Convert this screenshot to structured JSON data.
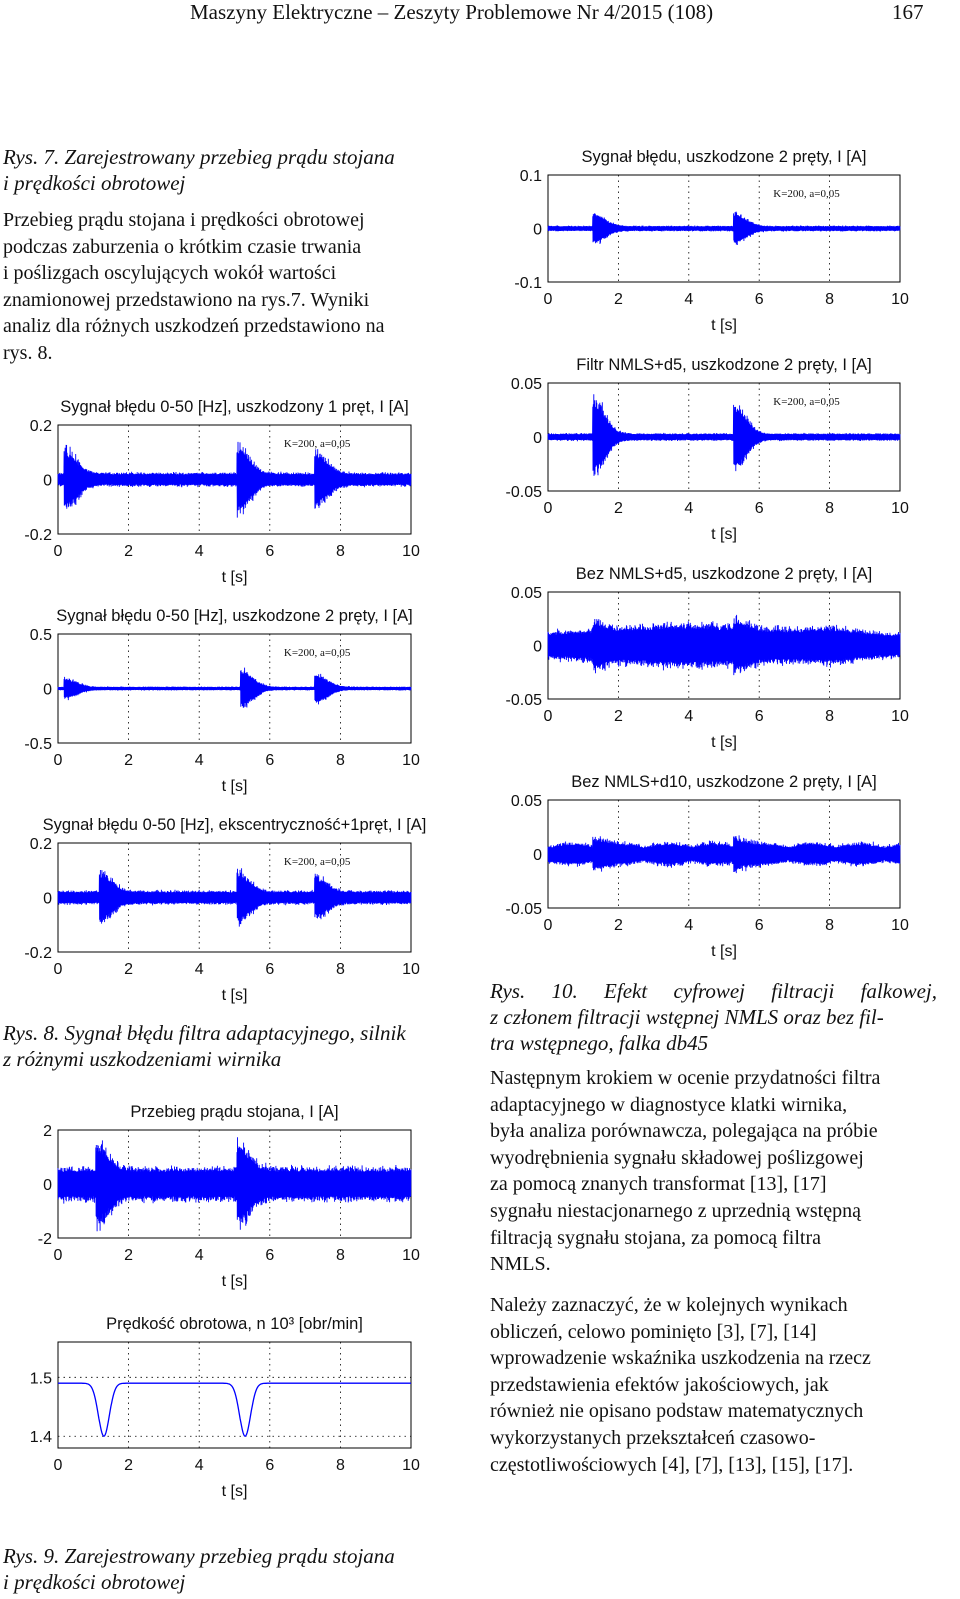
{
  "header": {
    "journal": "Maszyny Elektryczne – Zeszyty Problemowe Nr 4/2015 (108)",
    "page": "167"
  },
  "captions": {
    "rys7_line1": "Rys. 7. Zarejestrowany przebieg prądu stojana",
    "rys7_line2": "i prędkości obrotowej",
    "rys8_line1": "Rys. 8. Sygnał błędu filtra adaptacyjnego, silnik",
    "rys8_line2": "z różnymi uszkodzeniami wirnika",
    "rys9_line1": "Rys. 9. Zarejestrowany przebieg prądu stojana",
    "rys9_line2": "i prędkości obrotowej",
    "rys10_line1": "Rys.  10.  Efekt  cyfrowej  filtracji  falkowej,",
    "rys10_line2": "z członem filtracji wstępnej NMLS oraz bez fil-",
    "rys10_line3": "tra wstępnego, falka db45"
  },
  "text": {
    "left_para": [
      "Przebieg prądu stojana i prędkości obrotowej",
      "podczas zaburzenia o krótkim czasie trwania",
      "i poślizgach oscylujących wokół wartości",
      "znamionowej przedstawiono na rys.7. Wyniki",
      "analiz dla różnych uszkodzeń przedstawiono na",
      "rys. 8."
    ],
    "right_para1": [
      "Następnym krokiem w ocenie przydatności filtra",
      "adaptacyjnego w diagnostyce klatki wirnika,",
      "była analiza porównawcza, polegająca na próbie",
      "wyodrębnienia sygnału składowej poślizgowej",
      "za pomocą znanych transformat [13], [17]",
      "sygnału niestacjonarnego z uprzednią wstępną",
      "filtracją sygnału stojana, za pomocą filtra",
      "NMLS."
    ],
    "right_para2": [
      "Należy zaznaczyć, że w kolejnych wynikach",
      "obliczeń, celowo pominięto [3], [7], [14]",
      "wprowadzenie wskaźnika uszkodzenia na rzecz",
      "przedstawienia efektów jakościowych, jak",
      "również nie opisano podstaw matematycznych",
      "wykorzystanych przekształceń czasowo-",
      "częstotliwościowych [4], [7], [13], [15], [17]."
    ]
  },
  "chart_data": [
    {
      "type": "line",
      "title": "Sygnał błędu 0-50 [Hz], uszkodzony 1 pręt, I [A]",
      "xlabel": "t [s]",
      "ylabel": "",
      "xlim": [
        0,
        10
      ],
      "ylim": [
        -0.2,
        0.2
      ],
      "xticks": [
        "0",
        "2",
        "4",
        "6",
        "8",
        "10"
      ],
      "yticks": [
        "0.2",
        "0",
        "-0.2"
      ],
      "annotation": "K=200, a=0,05",
      "grid": "dotted",
      "color": "#0000ff",
      "series": [
        {
          "bursts": [
            {
              "t": 0.2,
              "amp": 0.11
            },
            {
              "t": 5.1,
              "amp": 0.13
            },
            {
              "t": 7.3,
              "amp": 0.1
            }
          ],
          "noise": 0.03
        }
      ]
    },
    {
      "type": "line",
      "title": "Sygnał błędu 0-50 [Hz], uszkodzone 2 pręty, I [A]",
      "xlabel": "t [s]",
      "ylabel": "",
      "xlim": [
        0,
        10
      ],
      "ylim": [
        -0.5,
        0.5
      ],
      "xticks": [
        "0",
        "2",
        "4",
        "6",
        "8",
        "10"
      ],
      "yticks": [
        "0.5",
        "0",
        "-0.5"
      ],
      "annotation": "K=200, a=0,05",
      "grid": "dotted",
      "color": "#0000ff",
      "series": [
        {
          "bursts": [
            {
              "t": 0.2,
              "amp": 0.1
            },
            {
              "t": 5.2,
              "amp": 0.2
            },
            {
              "t": 7.3,
              "amp": 0.15
            }
          ],
          "noise": 0.02
        }
      ]
    },
    {
      "type": "line",
      "title": "Sygnał błędu 0-50 [Hz], ekscentryczność+1pręt, I [A]",
      "xlabel": "t [s]",
      "ylabel": "",
      "xlim": [
        0,
        10
      ],
      "ylim": [
        -0.2,
        0.2
      ],
      "xticks": [
        "0",
        "2",
        "4",
        "6",
        "8",
        "10"
      ],
      "yticks": [
        "0.2",
        "0",
        "-0.2"
      ],
      "annotation": "K=200, a=0,05",
      "grid": "dotted",
      "color": "#0000ff",
      "series": [
        {
          "bursts": [
            {
              "t": 1.2,
              "amp": 0.09
            },
            {
              "t": 5.1,
              "amp": 0.09
            },
            {
              "t": 7.3,
              "amp": 0.07
            }
          ],
          "noise": 0.03
        }
      ]
    },
    {
      "type": "line",
      "title": "Przebieg prądu stojana, I [A]",
      "xlabel": "t [s]",
      "ylabel": "",
      "xlim": [
        0,
        10
      ],
      "ylim": [
        -2,
        2
      ],
      "xticks": [
        "0",
        "2",
        "4",
        "6",
        "8",
        "10"
      ],
      "yticks": [
        "2",
        "0",
        "-2"
      ],
      "annotation": "",
      "grid": "dotted",
      "color": "#0000ff",
      "series": [
        {
          "bursts": [
            {
              "t": 1.1,
              "amp": 1.2
            },
            {
              "t": 5.1,
              "amp": 1.2
            }
          ],
          "noise": 0.75
        }
      ]
    },
    {
      "type": "line",
      "title": "Prędkość obrotowa, n 10³ [obr/min]",
      "xlabel": "t [s]",
      "ylabel": "",
      "xlim": [
        0,
        10
      ],
      "ylim": [
        1.38,
        1.56
      ],
      "xticks": [
        "0",
        "2",
        "4",
        "6",
        "8",
        "10"
      ],
      "yticks": [
        "1.5",
        "1.4"
      ],
      "annotation": "",
      "grid": "dotted",
      "color": "#0000ff",
      "series": [
        {
          "baseline": 1.49,
          "dips": [
            {
              "t": 1.3,
              "depth": 0.09
            },
            {
              "t": 5.3,
              "depth": 0.09
            }
          ]
        }
      ]
    },
    {
      "type": "line",
      "title": "Sygnał błędu, uszkodzone 2 pręty, I [A]",
      "xlabel": "t [s]",
      "ylabel": "",
      "xlim": [
        0,
        10
      ],
      "ylim": [
        -0.1,
        0.1
      ],
      "xticks": [
        "0",
        "2",
        "4",
        "6",
        "8",
        "10"
      ],
      "yticks": [
        "0.1",
        "0",
        "-0.1"
      ],
      "annotation": "K=200, a=0,05",
      "grid": "dotted",
      "color": "#0000ff",
      "series": [
        {
          "bursts": [
            {
              "t": 1.3,
              "amp": 0.03
            },
            {
              "t": 5.3,
              "amp": 0.03
            }
          ],
          "noise": 0.006
        }
      ]
    },
    {
      "type": "line",
      "title": "Filtr NMLS+d5, uszkodzone 2 pręty, I [A]",
      "xlabel": "t [s]",
      "ylabel": "",
      "xlim": [
        0,
        10
      ],
      "ylim": [
        -0.05,
        0.05
      ],
      "xticks": [
        "0",
        "2",
        "4",
        "6",
        "8",
        "10"
      ],
      "yticks": [
        "0.05",
        "0",
        "-0.05"
      ],
      "annotation": "K=200, a=0,05",
      "grid": "dotted",
      "color": "#0000ff",
      "series": [
        {
          "bursts": [
            {
              "t": 1.3,
              "amp": 0.04
            },
            {
              "t": 5.3,
              "amp": 0.035
            }
          ],
          "noise": 0.004
        }
      ]
    },
    {
      "type": "line",
      "title": "Bez NMLS+d5, uszkodzone 2 pręty, I [A]",
      "xlabel": "t [s]",
      "ylabel": "",
      "xlim": [
        0,
        10
      ],
      "ylim": [
        -0.05,
        0.05
      ],
      "xticks": [
        "0",
        "2",
        "4",
        "6",
        "8",
        "10"
      ],
      "yticks": [
        "0.05",
        "0",
        "-0.05"
      ],
      "annotation": "",
      "grid": "dotted",
      "color": "#0000ff",
      "series": [
        {
          "bursts": [
            {
              "t": 1.3,
              "amp": 0.01
            },
            {
              "t": 5.3,
              "amp": 0.01
            }
          ],
          "noise": 0.025,
          "envelope": "bulge"
        }
      ]
    },
    {
      "type": "line",
      "title": "Bez NMLS+d10, uszkodzone 2 pręty, I [A]",
      "xlabel": "t [s]",
      "ylabel": "",
      "xlim": [
        0,
        10
      ],
      "ylim": [
        -0.05,
        0.05
      ],
      "xticks": [
        "0",
        "2",
        "4",
        "6",
        "8",
        "10"
      ],
      "yticks": [
        "0.05",
        "0",
        "-0.05"
      ],
      "annotation": "",
      "grid": "dotted",
      "color": "#0000ff",
      "series": [
        {
          "bursts": [
            {
              "t": 1.3,
              "amp": 0.01
            },
            {
              "t": 5.3,
              "amp": 0.01
            }
          ],
          "noise": 0.012,
          "envelope": "periodic"
        }
      ]
    }
  ]
}
